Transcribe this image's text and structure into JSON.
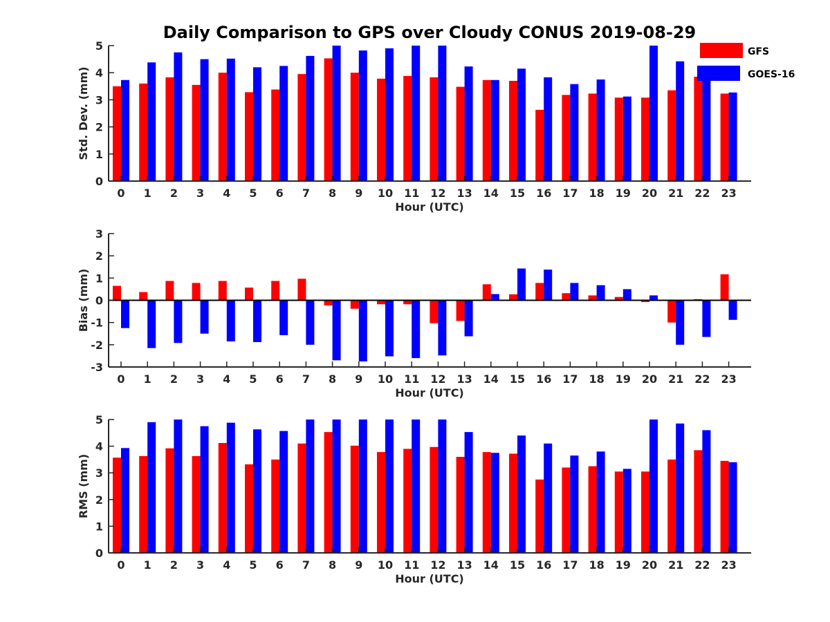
{
  "figure_title": "Daily Comparison to GPS over Cloudy CONUS 2019-08-29",
  "legend": [
    {
      "label": "GFS",
      "color": "#ff0000"
    },
    {
      "label": "GOES-16",
      "color": "#0000ff"
    }
  ],
  "chart_data": [
    {
      "type": "bar",
      "title": "Daily Comparison to GPS over Cloudy CONUS 2019-08-29",
      "xlabel": "Hour (UTC)",
      "ylabel": "Std. Dev. (mm)",
      "ylim": [
        0,
        5
      ],
      "yticks": [
        0,
        1,
        2,
        3,
        4,
        5
      ],
      "categories": [
        "0",
        "1",
        "2",
        "3",
        "4",
        "5",
        "6",
        "7",
        "8",
        "9",
        "10",
        "11",
        "12",
        "13",
        "14",
        "15",
        "16",
        "17",
        "18",
        "19",
        "20",
        "21",
        "22",
        "23"
      ],
      "series": [
        {
          "name": "GFS",
          "color": "#ff0000",
          "values": [
            3.5,
            3.6,
            3.83,
            3.55,
            4.0,
            3.28,
            3.38,
            3.95,
            4.53,
            4.0,
            3.78,
            3.88,
            3.83,
            3.48,
            3.73,
            3.7,
            2.63,
            3.18,
            3.23,
            3.08,
            3.08,
            3.35,
            3.85,
            3.23
          ]
        },
        {
          "name": "GOES-16",
          "color": "#0000ff",
          "values": [
            3.73,
            4.38,
            4.75,
            4.5,
            4.52,
            4.2,
            4.25,
            4.62,
            5.0,
            4.82,
            4.9,
            5.0,
            5.0,
            4.23,
            3.73,
            4.15,
            3.83,
            3.58,
            3.75,
            3.12,
            5.0,
            4.42,
            4.0,
            3.27
          ]
        }
      ],
      "grid": false,
      "legend_position": "top-right"
    },
    {
      "type": "bar",
      "xlabel": "Hour (UTC)",
      "ylabel": "Bias (mm)",
      "ylim": [
        -3,
        3
      ],
      "yticks": [
        -3,
        -2,
        -1,
        0,
        1,
        2,
        3
      ],
      "categories": [
        "0",
        "1",
        "2",
        "3",
        "4",
        "5",
        "6",
        "7",
        "8",
        "9",
        "10",
        "11",
        "12",
        "13",
        "14",
        "15",
        "16",
        "17",
        "18",
        "19",
        "20",
        "21",
        "22",
        "23"
      ],
      "series": [
        {
          "name": "GFS",
          "color": "#ff0000",
          "values": [
            0.65,
            0.37,
            0.87,
            0.78,
            0.87,
            0.57,
            0.87,
            0.97,
            -0.23,
            -0.38,
            -0.18,
            -0.18,
            -1.03,
            -0.93,
            0.72,
            0.27,
            0.78,
            0.32,
            0.22,
            0.15,
            -0.08,
            -1.0,
            0.05,
            1.17
          ]
        },
        {
          "name": "GOES-16",
          "color": "#0000ff",
          "values": [
            -1.25,
            -2.15,
            -1.92,
            -1.5,
            -1.85,
            -1.88,
            -1.57,
            -2.0,
            -2.7,
            -2.75,
            -2.52,
            -2.6,
            -2.48,
            -1.62,
            0.28,
            1.43,
            1.38,
            0.78,
            0.68,
            0.5,
            0.22,
            -2.0,
            -1.65,
            -0.88
          ]
        }
      ],
      "grid": false
    },
    {
      "type": "bar",
      "xlabel": "Hour (UTC)",
      "ylabel": "RMS (mm)",
      "ylim": [
        0,
        5
      ],
      "yticks": [
        0,
        1,
        2,
        3,
        4,
        5
      ],
      "categories": [
        "0",
        "1",
        "2",
        "3",
        "4",
        "5",
        "6",
        "7",
        "8",
        "9",
        "10",
        "11",
        "12",
        "13",
        "14",
        "15",
        "16",
        "17",
        "18",
        "19",
        "20",
        "21",
        "22",
        "23"
      ],
      "series": [
        {
          "name": "GFS",
          "color": "#ff0000",
          "values": [
            3.57,
            3.63,
            3.92,
            3.63,
            4.12,
            3.32,
            3.5,
            4.1,
            4.53,
            4.02,
            3.78,
            3.9,
            3.97,
            3.6,
            3.78,
            3.72,
            2.75,
            3.2,
            3.25,
            3.05,
            3.05,
            3.5,
            3.85,
            3.45
          ]
        },
        {
          "name": "GOES-16",
          "color": "#0000ff",
          "values": [
            3.93,
            4.9,
            5.0,
            4.75,
            4.88,
            4.63,
            4.57,
            5.0,
            5.0,
            5.0,
            5.0,
            5.0,
            5.0,
            4.53,
            3.75,
            4.4,
            4.1,
            3.65,
            3.8,
            3.15,
            5.0,
            4.85,
            4.6,
            3.4
          ]
        }
      ],
      "grid": false
    }
  ]
}
